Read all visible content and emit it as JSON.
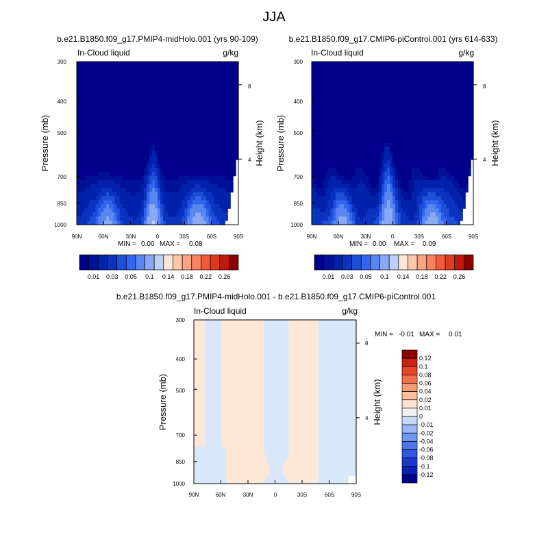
{
  "figure_title": "JJA",
  "chart_data": [
    {
      "type": "heatmap",
      "title": "b.e21.B1850.f09_g17.PMIP4-midHolo.001 (yrs 90-109)",
      "left_label": "In-Cloud liquid",
      "right_label": "g/kg",
      "ylabel": "Pressure (mb)",
      "ylabel_right": "Height (km)",
      "x_ticks": [
        "90N",
        "60N",
        "30N",
        "0",
        "30S",
        "60S",
        "90S"
      ],
      "y_ticks": [
        "300",
        "400",
        "500",
        "700",
        "850",
        "1000"
      ],
      "y_right_ticks": [
        "8",
        "4"
      ],
      "stats": {
        "min_label": "MIN =",
        "min": "0.00",
        "max_label": "MAX =",
        "max": "0.08"
      },
      "xlim": [
        90,
        -90
      ],
      "ylim": [
        1000,
        300
      ],
      "y_scale": "log",
      "contour_levels": [
        0.005,
        0.01,
        0.02,
        0.03,
        0.04,
        0.05,
        0.07,
        0.1,
        0.12,
        0.14,
        0.16,
        0.18,
        0.2,
        0.22,
        0.24,
        0.26
      ],
      "colorbar_labels": [
        "0.01",
        "0.03",
        "0.05",
        "0.1",
        "0.14",
        "0.18",
        "0.22",
        "0.26"
      ],
      "colorbar_placement": "bottom"
    },
    {
      "type": "heatmap",
      "title": "b.e21.B1850.f09_g17.CMIP6-piControl.001 (yrs 614-633)",
      "left_label": "In-Cloud liquid",
      "right_label": "g/kg",
      "ylabel": "Pressure (mb)",
      "ylabel_right": "Height (km)",
      "x_ticks": [
        "90N",
        "60N",
        "30N",
        "0",
        "30S",
        "60S",
        "90S"
      ],
      "y_ticks": [
        "300",
        "400",
        "500",
        "700",
        "850",
        "1000"
      ],
      "y_right_ticks": [
        "8",
        "4"
      ],
      "stats": {
        "min_label": "MIN =",
        "min": "0.00",
        "max_label": "MAX =",
        "max": "0.09"
      },
      "xlim": [
        90,
        -90
      ],
      "ylim": [
        1000,
        300
      ],
      "y_scale": "log",
      "contour_levels": [
        0.005,
        0.01,
        0.02,
        0.03,
        0.04,
        0.05,
        0.07,
        0.1,
        0.12,
        0.14,
        0.16,
        0.18,
        0.2,
        0.22,
        0.24,
        0.26
      ],
      "colorbar_labels": [
        "0.01",
        "0.03",
        "0.05",
        "0.1",
        "0.14",
        "0.18",
        "0.22",
        "0.26"
      ],
      "colorbar_placement": "bottom"
    },
    {
      "type": "heatmap",
      "title": "b.e21.B1850.f09_g17.PMIP4-midHolo.001 - b.e21.B1850.f09_g17.CMIP6-piControl.001",
      "left_label": "In-Cloud liquid",
      "right_label": "g/kg",
      "ylabel": "Pressure (mb)",
      "ylabel_right": "Height (km)",
      "x_ticks": [
        "90N",
        "60N",
        "30N",
        "0",
        "30S",
        "60S",
        "90S"
      ],
      "y_ticks": [
        "300",
        "400",
        "500",
        "700",
        "850",
        "1000"
      ],
      "y_right_ticks": [
        "8",
        "4"
      ],
      "stats": {
        "min_label": "MIN =",
        "min": "-0.01",
        "max_label": "MAX =",
        "max": "0.01"
      },
      "xlim": [
        90,
        -90
      ],
      "ylim": [
        1000,
        300
      ],
      "y_scale": "log",
      "contour_levels": [
        -0.12,
        -0.1,
        -0.08,
        -0.06,
        -0.04,
        -0.02,
        -0.01,
        0,
        0.01,
        0.02,
        0.04,
        0.06,
        0.08,
        0.1,
        0.12
      ],
      "colorbar_labels": [
        "0.12",
        "0.1",
        "0.08",
        "0.06",
        "0.04",
        "0.02",
        "0.01",
        "0",
        "-0.01",
        "-0.02",
        "-0.04",
        "-0.06",
        "-0.08",
        "-0.1",
        "-0.12"
      ],
      "colorbar_placement": "right"
    }
  ],
  "colors": {
    "seq_palette": [
      "#00008b",
      "#001199",
      "#0022aa",
      "#0a33c0",
      "#1f4ed8",
      "#3366ee",
      "#5a86f0",
      "#8aa9f4",
      "#bcd0f8",
      "#fde8d8",
      "#fbc8a8",
      "#f9a482",
      "#f6825e",
      "#f15a3a",
      "#e03a1e",
      "#c01a0c",
      "#8b0000"
    ],
    "diff_palette": [
      "#00008b",
      "#0a1fb0",
      "#1a3acc",
      "#2f58e0",
      "#4c78ec",
      "#6f96f2",
      "#9bb6f6",
      "#c8d8fa",
      "#f0f0f0",
      "#fde2d2",
      "#fbbf9c",
      "#f89a72",
      "#f2704c",
      "#e4482a",
      "#c82410",
      "#8b0000"
    ],
    "diff_pos": "#fde8d8",
    "diff_neg": "#d8e8fa"
  }
}
